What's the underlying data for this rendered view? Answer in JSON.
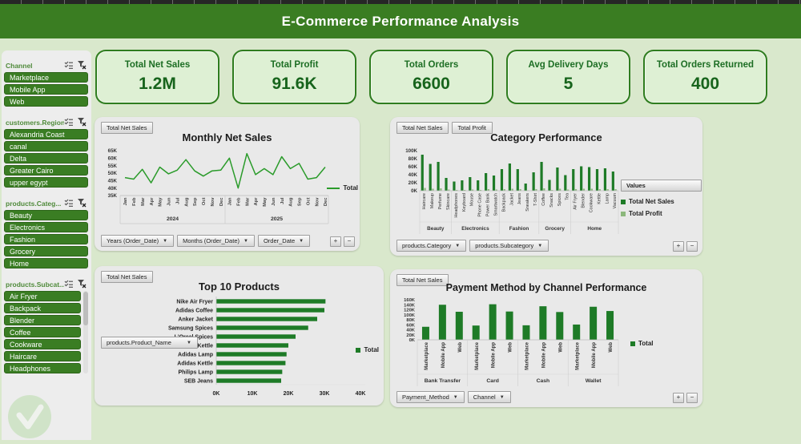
{
  "app": {
    "title": "E-Commerce Performance Analysis"
  },
  "colors": {
    "header_bg": "#3a7d22",
    "page_bg": "#d9e8cc",
    "panel_bg": "#e9e9e9",
    "sidebar_bg": "#ededed",
    "kpi_bg": "#def0d4",
    "kpi_border": "#2f7d1f",
    "slicer_item_bg": "#3a7d23",
    "series_net": "#1e7b27",
    "series_profit": "#8cb87c",
    "line_total": "#2a9b2a"
  },
  "sidebar": {
    "slicers": [
      {
        "label": "Channel",
        "items": [
          "Marketplace",
          "Mobile App",
          "Web"
        ]
      },
      {
        "label": "customers.Region",
        "items": [
          "Alexandria Coast",
          "canal",
          "Delta",
          "Greater Cairo",
          "upper egypt"
        ]
      },
      {
        "label": "products.Categ...",
        "items": [
          "Beauty",
          "Electronics",
          "Fashion",
          "Grocery",
          "Home"
        ]
      },
      {
        "label": "products.Subcat...",
        "items": [
          "Air Fryer",
          "Backpack",
          "Blender",
          "Coffee",
          "Cookware",
          "Haircare",
          "Headphones"
        ]
      }
    ]
  },
  "kpis": [
    {
      "label": "Total Net Sales",
      "value": "1.2M"
    },
    {
      "label": "Total Profit",
      "value": "91.6K"
    },
    {
      "label": "Total Orders",
      "value": "6600"
    },
    {
      "label": "Avg Delivery Days",
      "value": "5"
    },
    {
      "label": "Total Orders Returned",
      "value": "400"
    }
  ],
  "charts": {
    "monthly": {
      "field_button": "Total Net Sales",
      "title": "Monthly Net Sales",
      "legend": "Total",
      "axis_buttons": [
        "Years (Order_Date)",
        "Months (Order_Date)",
        "Order_Date"
      ],
      "zoom_buttons": [
        "+",
        "−"
      ]
    },
    "category": {
      "field_buttons": [
        "Total Net Sales",
        "Total Profit"
      ],
      "title": "Category Performance",
      "legend_button": "Values",
      "legend_items": [
        "Total Net Sales",
        "Total Profit"
      ],
      "axis_buttons": [
        "products.Category",
        "products.Subcategory"
      ],
      "zoom_buttons": [
        "+",
        "−"
      ]
    },
    "top10": {
      "field_button": "Total Net Sales",
      "title": "Top 10 Products",
      "legend": "Total",
      "axis_button": "products.Product_Name"
    },
    "payment": {
      "field_button": "Total Net Sales",
      "title": "Payment Method by Channel Performance",
      "legend": "Total",
      "axis_buttons": [
        "Payment_Method",
        "Channel"
      ],
      "zoom_buttons": [
        "+",
        "−"
      ]
    }
  },
  "chart_data": [
    {
      "id": "monthly_net_sales",
      "type": "line",
      "title": "Monthly Net Sales",
      "unit": "K",
      "x_months": [
        "Jan",
        "Feb",
        "Mar",
        "Apr",
        "May",
        "Jun",
        "Jul",
        "Aug",
        "Sep",
        "Oct",
        "Nov",
        "Dec"
      ],
      "year_groups": [
        "2024",
        "2025"
      ],
      "series": [
        {
          "name": "Total",
          "values": [
            47,
            46,
            52.5,
            43.5,
            54,
            49.5,
            52,
            59,
            51.5,
            48,
            51.5,
            52,
            60,
            40,
            63,
            49,
            53,
            49,
            61,
            53,
            56.5,
            46,
            47,
            54
          ]
        }
      ],
      "ylim": [
        35,
        65
      ],
      "ytick_step": 5,
      "legend_position": "right"
    },
    {
      "id": "category_performance",
      "type": "bar",
      "title": "Category Performance",
      "unit": "K",
      "groups": [
        {
          "label": "Beauty",
          "items": [
            "Haircare",
            "Makeup",
            "Perfume",
            "Skincare"
          ]
        },
        {
          "label": "Electronics",
          "items": [
            "Headphones",
            "Keyboard",
            "Mouse",
            "Phone Case",
            "Power Bank",
            "Smartwatch"
          ]
        },
        {
          "label": "Fashion",
          "items": [
            "Backpack",
            "Jacket",
            "Jeans",
            "Sneakers",
            "T-Shirt"
          ]
        },
        {
          "label": "Grocery",
          "items": [
            "Coffee",
            "Snacks",
            "Spices",
            "Tea"
          ]
        },
        {
          "label": "Home",
          "items": [
            "Air Fryer",
            "Blender",
            "Cookware",
            "Kettle",
            "Lamp",
            "Vacuum"
          ]
        }
      ],
      "series": [
        {
          "name": "Total Net Sales",
          "values": [
            90,
            67,
            72,
            32,
            23,
            26,
            34,
            26,
            44,
            38,
            54,
            68,
            54,
            18,
            46,
            72,
            27,
            58,
            39,
            54,
            61,
            59,
            54,
            56,
            48
          ]
        },
        {
          "name": "Total Profit",
          "values": [
            7,
            5,
            6,
            3,
            2,
            2,
            3,
            2,
            4,
            3,
            4,
            5,
            4,
            1,
            4,
            6,
            2,
            5,
            3,
            4,
            5,
            5,
            4,
            4,
            4
          ]
        }
      ],
      "ylim": [
        0,
        100
      ],
      "ytick_step": 20,
      "legend_position": "right"
    },
    {
      "id": "top_10_products",
      "type": "bar",
      "orientation": "horizontal",
      "title": "Top 10 Products",
      "unit": "K",
      "categories": [
        "Nike Air Fryer",
        "Adidas Coffee",
        "Anker Jacket",
        "Samsung Spices",
        "L'Oreal Spices",
        "Nivea Kettle",
        "Adidas Lamp",
        "Adidas Kettle",
        "Philips Lamp",
        "SEB Jeans"
      ],
      "series": [
        {
          "name": "Total",
          "values": [
            30.3,
            30,
            28,
            25.5,
            22,
            20,
            19.5,
            19.2,
            18.3,
            18
          ]
        }
      ],
      "xlim": [
        0,
        40
      ],
      "xtick_step": 10,
      "legend_position": "right"
    },
    {
      "id": "payment_by_channel",
      "type": "bar",
      "title": "Payment Method by Channel Performance",
      "unit": "K",
      "groups": [
        {
          "label": "Bank Transfer",
          "items": [
            "Marketplace",
            "Mobile App",
            "Web"
          ]
        },
        {
          "label": "Card",
          "items": [
            "Marketplace",
            "Mobile App",
            "Web"
          ]
        },
        {
          "label": "Cash",
          "items": [
            "Marketplace",
            "Mobile App",
            "Web"
          ]
        },
        {
          "label": "Wallet",
          "items": [
            "Marketplace",
            "Mobile App",
            "Web"
          ]
        }
      ],
      "series": [
        {
          "name": "Total",
          "values": [
            52,
            140,
            112,
            57,
            142,
            113,
            58,
            134,
            111,
            61,
            132,
            115
          ]
        }
      ],
      "ylim": [
        0,
        160
      ],
      "ytick_step": 20,
      "legend_position": "right"
    }
  ]
}
